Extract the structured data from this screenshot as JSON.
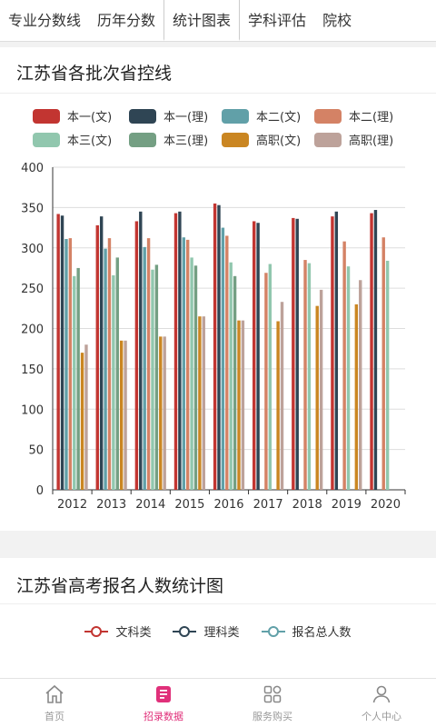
{
  "tabs": [
    {
      "label": "专业分数线",
      "active": false
    },
    {
      "label": "历年分数",
      "active": false
    },
    {
      "label": "统计图表",
      "active": true
    },
    {
      "label": "学科评估",
      "active": false
    },
    {
      "label": "院校",
      "active": false
    }
  ],
  "card1": {
    "title": "江苏省各批次省控线"
  },
  "chart_data": {
    "type": "bar",
    "title": "江苏省各批次省控线",
    "categories": [
      "2012",
      "2013",
      "2014",
      "2015",
      "2016",
      "2017",
      "2018",
      "2019",
      "2020"
    ],
    "ylim": [
      0,
      400
    ],
    "yticks": [
      0,
      50,
      100,
      150,
      200,
      250,
      300,
      350,
      400
    ],
    "legend_position": "top",
    "grid": true,
    "series": [
      {
        "name": "本一(文)",
        "color": "#c23531",
        "values": [
          342,
          328,
          333,
          343,
          355,
          333,
          337,
          339,
          343
        ]
      },
      {
        "name": "本一(理)",
        "color": "#2f4554",
        "values": [
          340,
          339,
          345,
          345,
          353,
          331,
          336,
          345,
          347
        ]
      },
      {
        "name": "本二(文)",
        "color": "#61a0a8",
        "values": [
          311,
          299,
          301,
          313,
          325,
          null,
          null,
          null,
          null
        ]
      },
      {
        "name": "本二(理)",
        "color": "#d48265",
        "values": [
          312,
          312,
          312,
          310,
          315,
          269,
          285,
          308,
          313
        ]
      },
      {
        "name": "本三(文)",
        "color": "#91c7ae",
        "values": [
          265,
          266,
          273,
          288,
          282,
          280,
          281,
          277,
          284
        ]
      },
      {
        "name": "本三(理)",
        "color": "#749f83",
        "values": [
          275,
          288,
          279,
          278,
          265,
          null,
          null,
          null,
          null
        ]
      },
      {
        "name": "高职(文)",
        "color": "#ca8622",
        "values": [
          170,
          185,
          190,
          215,
          210,
          209,
          228,
          230,
          null
        ]
      },
      {
        "name": "高职(理)",
        "color": "#bda29a",
        "values": [
          180,
          185,
          190,
          215,
          210,
          233,
          248,
          260,
          null
        ]
      }
    ]
  },
  "card2": {
    "title": "江苏省高考报名人数统计图",
    "legend": [
      {
        "name": "文科类",
        "color": "#c23531"
      },
      {
        "name": "理科类",
        "color": "#2f4554"
      },
      {
        "name": "报名总人数",
        "color": "#61a0a8"
      }
    ]
  },
  "bottom_nav": [
    {
      "label": "首页",
      "icon": "home-icon",
      "active": false
    },
    {
      "label": "招录数据",
      "icon": "document-icon",
      "active": true
    },
    {
      "label": "服务购买",
      "icon": "grid-icon",
      "active": false
    },
    {
      "label": "个人中心",
      "icon": "user-icon",
      "active": false
    }
  ]
}
